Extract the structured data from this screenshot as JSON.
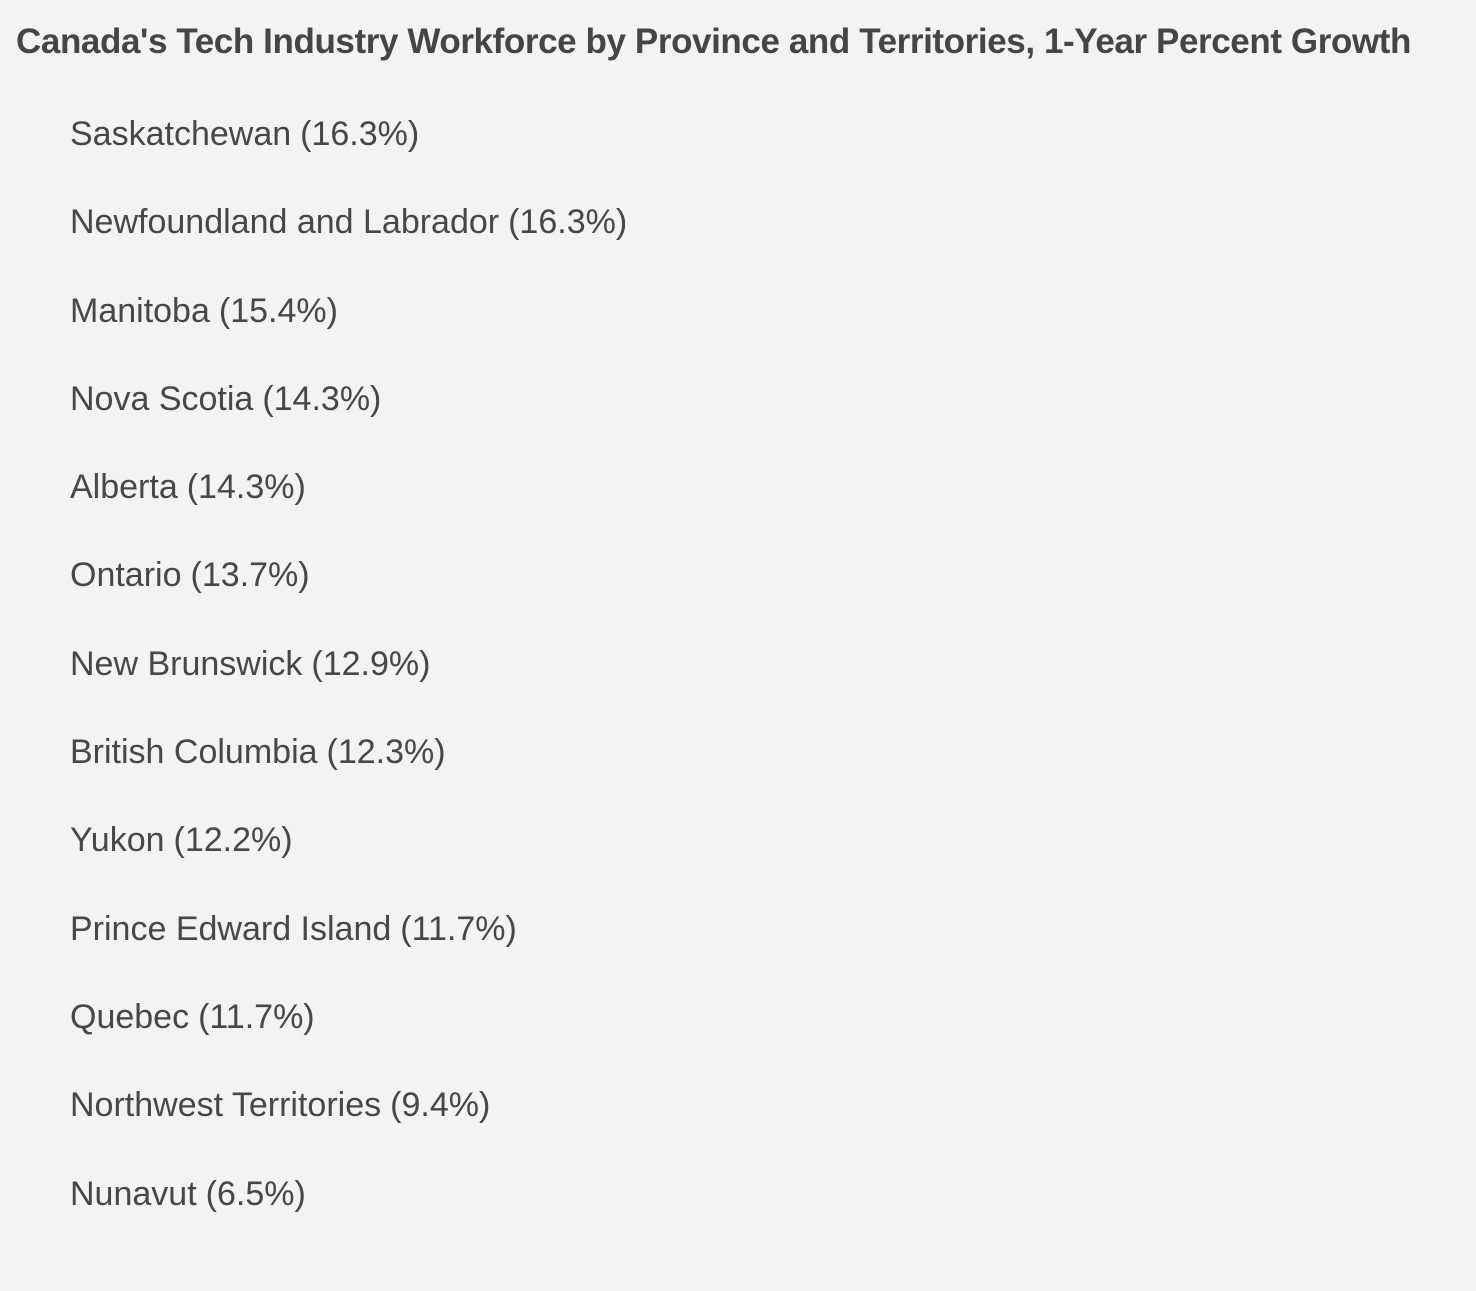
{
  "title": "Canada's Tech Industry Workforce by Province and Territories, 1-Year Percent Growth",
  "items": [
    {
      "region": "Saskatchewan",
      "growth": "(16.3%)"
    },
    {
      "region": "Newfoundland and Labrador",
      "growth": "(16.3%)"
    },
    {
      "region": "Manitoba",
      "growth": "(15.4%)"
    },
    {
      "region": "Nova Scotia",
      "growth": "(14.3%)"
    },
    {
      "region": "Alberta",
      "growth": "(14.3%)"
    },
    {
      "region": "Ontario",
      "growth": "(13.7%)"
    },
    {
      "region": "New Brunswick",
      "growth": "(12.9%)"
    },
    {
      "region": "British Columbia",
      "growth": "(12.3%)"
    },
    {
      "region": "Yukon",
      "growth": "(12.2%)"
    },
    {
      "region": "Prince Edward Island",
      "growth": "(11.7%)"
    },
    {
      "region": "Quebec",
      "growth": "(11.7%)"
    },
    {
      "region": "Northwest Territories",
      "growth": "(9.4%)"
    },
    {
      "region": "Nunavut",
      "growth": "(6.5%)"
    }
  ]
}
